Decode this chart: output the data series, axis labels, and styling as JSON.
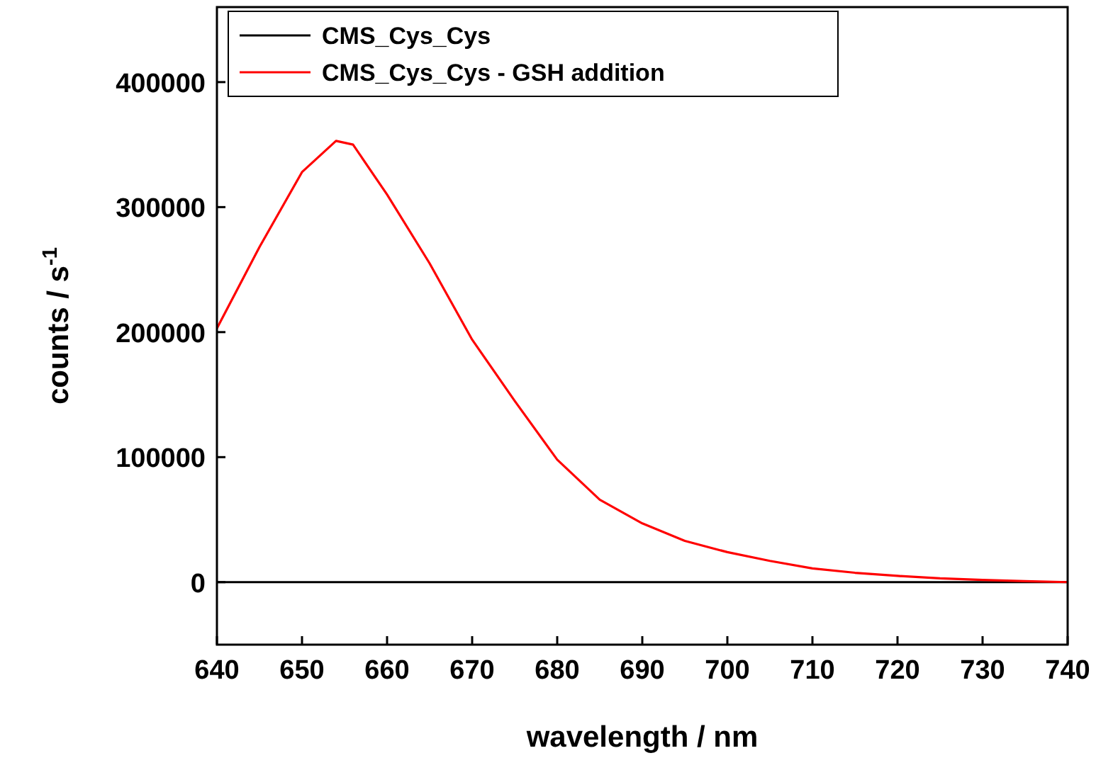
{
  "chart_data": {
    "type": "line",
    "xlabel": "wavelength / nm",
    "ylabel": "counts / s$^{-1}$",
    "x": [
      640,
      645,
      650,
      654,
      656,
      660,
      665,
      670,
      675,
      680,
      685,
      690,
      695,
      700,
      705,
      710,
      715,
      720,
      725,
      730,
      735,
      740
    ],
    "xlim": [
      640,
      740
    ],
    "xticks": [
      640,
      650,
      660,
      670,
      680,
      690,
      700,
      710,
      720,
      730,
      740
    ],
    "ylim": [
      -50000,
      460000
    ],
    "yticks": [
      0,
      100000,
      200000,
      300000,
      400000
    ],
    "legend": "top",
    "grid": false,
    "marker": "none",
    "line_style": "solid",
    "series": [
      {
        "name": "CMS_Cys_Cys",
        "color": "#000000",
        "values": [
          0,
          0,
          0,
          0,
          0,
          0,
          0,
          0,
          0,
          0,
          0,
          0,
          0,
          0,
          0,
          0,
          0,
          0,
          0,
          0,
          0,
          0
        ]
      },
      {
        "name": "CMS_Cys_Cys - GSH addition",
        "color": "#ff0000",
        "values": [
          203000,
          268000,
          328000,
          353000,
          350000,
          310000,
          255000,
          194000,
          145000,
          98000,
          66000,
          47000,
          33000,
          24000,
          17000,
          11000,
          7500,
          5000,
          3000,
          1800,
          800,
          0
        ]
      }
    ]
  }
}
